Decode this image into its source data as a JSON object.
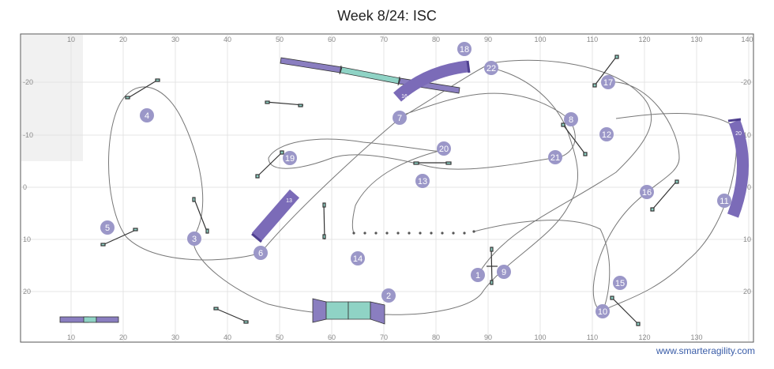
{
  "title": "Week 8/24: ISC",
  "credit": "www.smarteragility.com",
  "axes": {
    "top_ticks": [
      "10",
      "20",
      "30",
      "40",
      "50",
      "60",
      "70",
      "80",
      "90",
      "100",
      "110",
      "120",
      "130",
      "140"
    ],
    "bottom_ticks": [
      "10",
      "20",
      "30",
      "40",
      "50",
      "60",
      "70",
      "80",
      "90",
      "100",
      "110",
      "120",
      "130"
    ],
    "left_ticks": [
      "-20",
      "-10",
      "0",
      "10",
      "20"
    ],
    "right_ticks": [
      "-20",
      "-10",
      "0",
      "10",
      "20"
    ]
  },
  "colors": {
    "tunnel": "#7b6bb8",
    "tunnel_dark": "#4e3f8f",
    "dogwalk": "#8fd3c5",
    "number_fill": "#9b97c8",
    "path": "#777777",
    "grid": "#e4e4e4"
  },
  "numbers": [
    {
      "id": "1",
      "label": "1"
    },
    {
      "id": "2",
      "label": "2"
    },
    {
      "id": "3",
      "label": "3"
    },
    {
      "id": "4",
      "label": "4"
    },
    {
      "id": "5",
      "label": "5"
    },
    {
      "id": "6",
      "label": "6"
    },
    {
      "id": "7",
      "label": "7"
    },
    {
      "id": "8",
      "label": "8"
    },
    {
      "id": "9",
      "label": "9"
    },
    {
      "id": "10",
      "label": "10"
    },
    {
      "id": "11",
      "label": "11"
    },
    {
      "id": "12",
      "label": "12"
    },
    {
      "id": "13",
      "label": "13"
    },
    {
      "id": "14",
      "label": "14"
    },
    {
      "id": "15",
      "label": "15"
    },
    {
      "id": "16",
      "label": "16"
    },
    {
      "id": "17",
      "label": "17"
    },
    {
      "id": "18",
      "label": "18"
    },
    {
      "id": "19",
      "label": "19"
    },
    {
      "id": "20",
      "label": "20"
    },
    {
      "id": "21",
      "label": "21"
    },
    {
      "id": "22",
      "label": "22"
    }
  ],
  "obstacle_labels": {
    "tunnel_a": "13",
    "tunnel_b": "16",
    "tunnel_c": "20"
  }
}
